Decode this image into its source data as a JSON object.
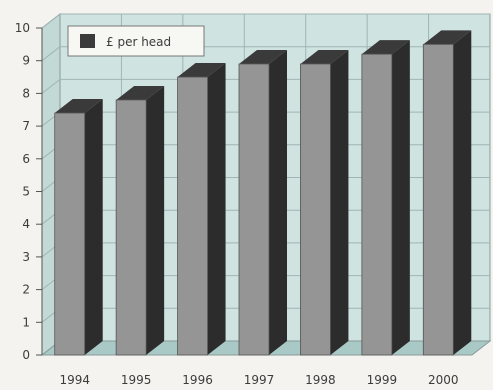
{
  "chart_data": {
    "type": "bar",
    "title": "",
    "xlabel": "",
    "ylabel": "",
    "categories": [
      "1994",
      "1995",
      "1996",
      "1997",
      "1998",
      "1999",
      "2000"
    ],
    "series": [
      {
        "name": "£ per head",
        "values": [
          7.4,
          7.8,
          8.5,
          8.9,
          8.9,
          9.2,
          9.5
        ]
      }
    ],
    "ylim": [
      0,
      10
    ],
    "yticks": [
      0,
      1,
      2,
      3,
      4,
      5,
      6,
      7,
      8,
      9,
      10
    ],
    "grid": true,
    "three_d": true,
    "legend_position": "top-left",
    "colors": {
      "wall": "#cfe3e1",
      "grid_line": "#9fb6b4",
      "bar_front": "#959595",
      "bar_side": "#2c2c2c",
      "bar_top": "#3a3a3a",
      "legend_swatch": "#3b3b3b",
      "text": "#3c3c3c"
    }
  }
}
